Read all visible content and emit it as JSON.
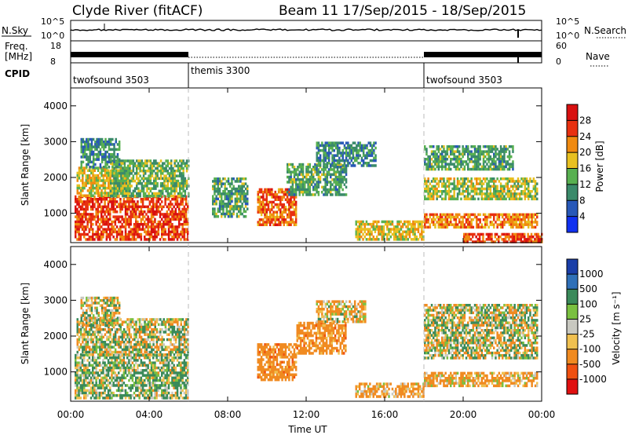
{
  "header": {
    "station": "Clyde River (fitACF)",
    "beam_info": "Beam 11  17/Sep/2015 - 18/Sep/2015"
  },
  "status_panel": {
    "nsky_label": "N.Sky",
    "nsky_ticks": [
      "10^5",
      "10^0"
    ],
    "nsearch_label": "N.Search",
    "nsearch_ticks": [
      "10^5",
      "10^0"
    ],
    "freq_label_top": "Freq.",
    "freq_label_unit": "[MHz]",
    "freq_ticks": [
      "18",
      "8"
    ],
    "nave_label": "Nave",
    "nave_ticks": [
      "60",
      "0"
    ],
    "cpid_label": "CPID",
    "cpid_segments": [
      {
        "name": "twofsound 3503",
        "start_h": 0,
        "end_h": 6
      },
      {
        "name": "themis 3300",
        "start_h": 6,
        "end_h": 18
      },
      {
        "name": "twofsound 3503",
        "start_h": 18,
        "end_h": 24
      }
    ]
  },
  "x_axis": {
    "label": "Time UT",
    "ticks": [
      "00:00",
      "04:00",
      "08:00",
      "12:00",
      "16:00",
      "20:00",
      "00:00"
    ]
  },
  "y_axis": {
    "label": "Slant Range [km]",
    "ticks": [
      "1000",
      "2000",
      "3000",
      "4000"
    ]
  },
  "power_colorbar": {
    "label": "Power [dB]",
    "ticks": [
      "4",
      "8",
      "12",
      "16",
      "20",
      "24",
      "28"
    ],
    "colors": [
      "#1030f0",
      "#2858b8",
      "#3a8a6a",
      "#58b050",
      "#e8c020",
      "#f08a10",
      "#e83010",
      "#d81010"
    ]
  },
  "velocity_colorbar": {
    "label": "Velocity [m s⁻¹]",
    "ticks": [
      "1000",
      "500",
      "100",
      "25",
      "-25",
      "-100",
      "-500",
      "-1000"
    ],
    "colors": [
      "#1a3ea8",
      "#2f70b8",
      "#3a8a5a",
      "#7ac040",
      "#c8c8c0",
      "#f0c050",
      "#f08a20",
      "#f05010",
      "#e01010"
    ]
  },
  "chart_data": [
    {
      "type": "heatmap",
      "title": "Power",
      "xlabel": "Time UT",
      "ylabel": "Slant Range [km]",
      "xlim": [
        0,
        24
      ],
      "ylim": [
        180,
        4500
      ],
      "colorbar": {
        "label": "Power [dB]",
        "range": [
          0,
          32
        ]
      },
      "regions": [
        {
          "t0": 0.2,
          "t1": 6.0,
          "r0": 250,
          "r1": 1500,
          "value": 26
        },
        {
          "t0": 0.3,
          "t1": 3.0,
          "r0": 1500,
          "r1": 2300,
          "value": 18
        },
        {
          "t0": 2.0,
          "t1": 6.0,
          "r0": 1500,
          "r1": 2500,
          "value": 14
        },
        {
          "t0": 0.5,
          "t1": 2.5,
          "r0": 2300,
          "r1": 3100,
          "value": 10
        },
        {
          "t0": 9.5,
          "t1": 11.5,
          "r0": 700,
          "r1": 1700,
          "value": 24
        },
        {
          "t0": 7.2,
          "t1": 9.0,
          "r0": 900,
          "r1": 2000,
          "value": 12
        },
        {
          "t0": 11.0,
          "t1": 14.0,
          "r0": 1500,
          "r1": 2400,
          "value": 12
        },
        {
          "t0": 12.5,
          "t1": 15.5,
          "r0": 2300,
          "r1": 3000,
          "value": 10
        },
        {
          "t0": 14.5,
          "t1": 18.0,
          "r0": 300,
          "r1": 800,
          "value": 18
        },
        {
          "t0": 18.0,
          "t1": 23.8,
          "r0": 600,
          "r1": 1000,
          "value": 22
        },
        {
          "t0": 18.0,
          "t1": 23.8,
          "r0": 1400,
          "r1": 2000,
          "value": 16
        },
        {
          "t0": 18.0,
          "t1": 22.5,
          "r0": 2200,
          "r1": 2900,
          "value": 12
        },
        {
          "t0": 20.0,
          "t1": 24.0,
          "r0": 180,
          "r1": 450,
          "value": 26
        }
      ]
    },
    {
      "type": "heatmap",
      "title": "Velocity",
      "xlabel": "Time UT",
      "ylabel": "Slant Range [km]",
      "xlim": [
        0,
        24
      ],
      "ylim": [
        180,
        4500
      ],
      "colorbar": {
        "label": "Velocity [m s⁻¹]",
        "range": [
          -1000,
          1000
        ]
      },
      "regions": [
        {
          "t0": 0.2,
          "t1": 6.0,
          "r0": 250,
          "r1": 1500,
          "value": 100
        },
        {
          "t0": 0.3,
          "t1": 6.0,
          "r0": 1500,
          "r1": 2500,
          "value": 0
        },
        {
          "t0": 0.5,
          "t1": 2.5,
          "r0": 2300,
          "r1": 3100,
          "value": 0
        },
        {
          "t0": 9.5,
          "t1": 11.5,
          "r0": 800,
          "r1": 1800,
          "value": -300
        },
        {
          "t0": 11.5,
          "t1": 14.0,
          "r0": 1500,
          "r1": 2400,
          "value": -300
        },
        {
          "t0": 12.5,
          "t1": 15.0,
          "r0": 2400,
          "r1": 3000,
          "value": -100
        },
        {
          "t0": 14.5,
          "t1": 18.0,
          "r0": 300,
          "r1": 700,
          "value": -200
        },
        {
          "t0": 18.0,
          "t1": 23.8,
          "r0": 600,
          "r1": 1000,
          "value": -150
        },
        {
          "t0": 18.0,
          "t1": 23.8,
          "r0": 1400,
          "r1": 2900,
          "value": 0
        }
      ]
    }
  ]
}
